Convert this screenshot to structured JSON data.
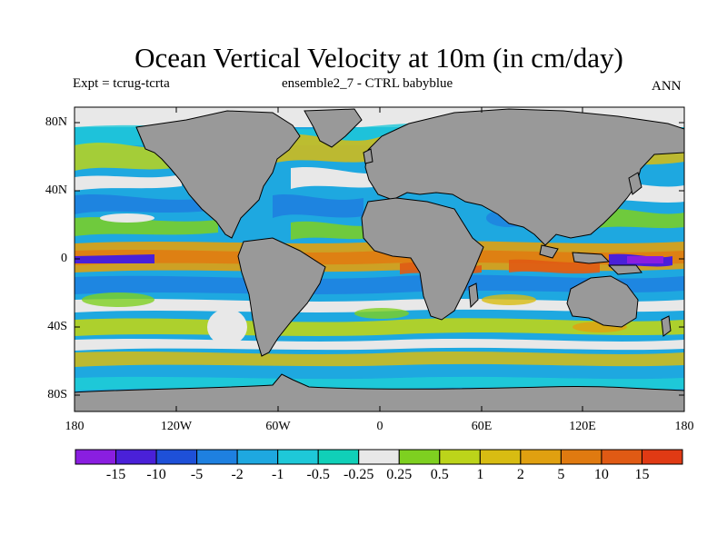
{
  "title": "Ocean Vertical Velocity at 10m (in cm/day)",
  "subtitle_left": "Expt = tcrug-tcrta",
  "subtitle_center": "ensemble2_7 - CTRL babyblue",
  "subtitle_right": "ANN",
  "lat_labels": [
    "80N",
    "40N",
    "0",
    "40S",
    "80S"
  ],
  "lon_labels": [
    "180",
    "120W",
    "60W",
    "0",
    "60E",
    "120E",
    "180"
  ],
  "colorbar": {
    "labels": [
      "-15",
      "-10",
      "-5",
      "-2",
      "-1",
      "-0.5",
      "-0.25",
      "0.25",
      "0.5",
      "1",
      "2",
      "5",
      "10",
      "15"
    ],
    "colors": [
      "#8a1ee0",
      "#4a20d8",
      "#1e50d8",
      "#1e80e0",
      "#1ea8e0",
      "#1ec8d8",
      "#10d0b8",
      "#e8e8e8",
      "#7ed020",
      "#bcd41a",
      "#d8bc12",
      "#e0a010",
      "#e07a10",
      "#e05a14",
      "#e03a14"
    ]
  },
  "land_color": "#999999"
}
